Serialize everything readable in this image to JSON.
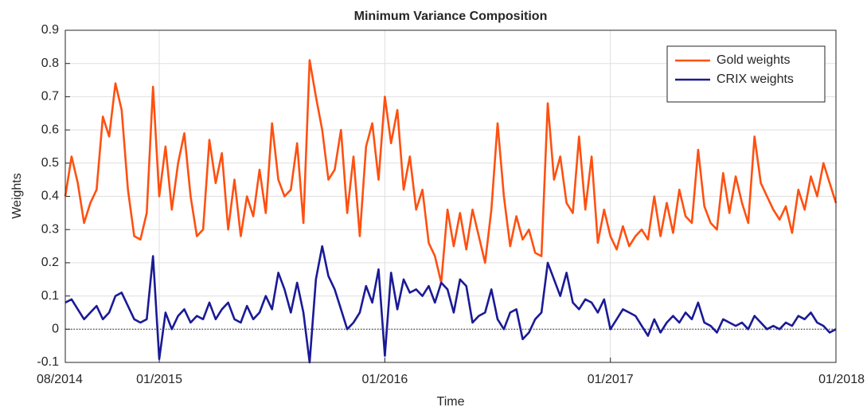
{
  "chart_data": {
    "type": "line",
    "title": "Minimum Variance Composition",
    "xlabel": "Time",
    "ylabel": "Weights",
    "categories": [
      "08/2014",
      null,
      null,
      null,
      null,
      null,
      null,
      null,
      null,
      null,
      null,
      null,
      null,
      null,
      null,
      "01/2015",
      null,
      null,
      null,
      null,
      null,
      null,
      null,
      null,
      null,
      null,
      null,
      null,
      null,
      null,
      null,
      null,
      null,
      null,
      null,
      null,
      null,
      null,
      null,
      null,
      null,
      null,
      null,
      null,
      null,
      null,
      null,
      null,
      null,
      null,
      null,
      "01/2016",
      null,
      null,
      null,
      null,
      null,
      null,
      null,
      null,
      null,
      null,
      null,
      null,
      null,
      null,
      null,
      null,
      null,
      null,
      null,
      null,
      null,
      null,
      null,
      null,
      null,
      null,
      null,
      null,
      null,
      null,
      null,
      null,
      null,
      null,
      null,
      "01/2017",
      null,
      null,
      null,
      null,
      null,
      null,
      null,
      null,
      null,
      null,
      null,
      null,
      null,
      null,
      null,
      null,
      null,
      null,
      null,
      null,
      null,
      null,
      null,
      null,
      null,
      null,
      null,
      null,
      null,
      null,
      null,
      null,
      null,
      null,
      null,
      "01/2018"
    ],
    "series": [
      {
        "name": "Gold weights",
        "color": "#ff5010",
        "values": [
          0.4,
          0.52,
          0.44,
          0.32,
          0.38,
          0.42,
          0.64,
          0.58,
          0.74,
          0.66,
          0.42,
          0.28,
          0.27,
          0.35,
          0.73,
          0.4,
          0.55,
          0.36,
          0.5,
          0.59,
          0.4,
          0.28,
          0.3,
          0.57,
          0.44,
          0.53,
          0.3,
          0.45,
          0.28,
          0.4,
          0.34,
          0.48,
          0.35,
          0.62,
          0.45,
          0.4,
          0.42,
          0.56,
          0.32,
          0.81,
          0.7,
          0.6,
          0.45,
          0.48,
          0.6,
          0.35,
          0.52,
          0.28,
          0.55,
          0.62,
          0.45,
          0.7,
          0.56,
          0.66,
          0.42,
          0.52,
          0.36,
          0.42,
          0.26,
          0.22,
          0.14,
          0.36,
          0.25,
          0.35,
          0.24,
          0.36,
          0.28,
          0.2,
          0.36,
          0.62,
          0.4,
          0.25,
          0.34,
          0.27,
          0.3,
          0.23,
          0.22,
          0.68,
          0.45,
          0.52,
          0.38,
          0.35,
          0.58,
          0.36,
          0.52,
          0.26,
          0.36,
          0.28,
          0.24,
          0.31,
          0.25,
          0.28,
          0.3,
          0.27,
          0.4,
          0.28,
          0.38,
          0.29,
          0.42,
          0.34,
          0.32,
          0.54,
          0.37,
          0.32,
          0.3,
          0.47,
          0.35,
          0.46,
          0.38,
          0.32,
          0.58,
          0.44,
          0.4,
          0.36,
          0.33,
          0.37,
          0.29,
          0.42,
          0.36,
          0.46,
          0.4,
          0.5,
          0.44,
          0.38
        ]
      },
      {
        "name": "CRIX weights",
        "color": "#1a1a96",
        "values": [
          0.08,
          0.09,
          0.06,
          0.03,
          0.05,
          0.07,
          0.03,
          0.05,
          0.1,
          0.11,
          0.07,
          0.03,
          0.02,
          0.03,
          0.22,
          -0.09,
          0.05,
          0.0,
          0.04,
          0.06,
          0.02,
          0.04,
          0.03,
          0.08,
          0.03,
          0.06,
          0.08,
          0.03,
          0.02,
          0.07,
          0.03,
          0.05,
          0.1,
          0.06,
          0.17,
          0.12,
          0.05,
          0.14,
          0.05,
          -0.1,
          0.15,
          0.25,
          0.16,
          0.12,
          0.06,
          0.0,
          0.02,
          0.05,
          0.13,
          0.08,
          0.18,
          -0.08,
          0.17,
          0.06,
          0.15,
          0.11,
          0.12,
          0.1,
          0.13,
          0.08,
          0.14,
          0.12,
          0.05,
          0.15,
          0.13,
          0.02,
          0.04,
          0.05,
          0.12,
          0.03,
          0.0,
          0.05,
          0.06,
          -0.03,
          -0.01,
          0.03,
          0.05,
          0.2,
          0.15,
          0.1,
          0.17,
          0.08,
          0.06,
          0.09,
          0.08,
          0.05,
          0.09,
          0.0,
          0.03,
          0.06,
          0.05,
          0.04,
          0.01,
          -0.02,
          0.03,
          -0.01,
          0.02,
          0.04,
          0.02,
          0.05,
          0.03,
          0.08,
          0.02,
          0.01,
          -0.01,
          0.03,
          0.02,
          0.01,
          0.02,
          0.0,
          0.04,
          0.02,
          0.0,
          0.01,
          0.0,
          0.02,
          0.01,
          0.04,
          0.03,
          0.05,
          0.02,
          0.01,
          -0.01,
          0.0
        ]
      }
    ],
    "ylim": [
      -0.1,
      0.9
    ],
    "yticks": [
      -0.1,
      0,
      0.1,
      0.2,
      0.3,
      0.4,
      0.5,
      0.6,
      0.7,
      0.8,
      0.9
    ],
    "reference_line": 0,
    "grid": true,
    "legend": "upper right"
  }
}
